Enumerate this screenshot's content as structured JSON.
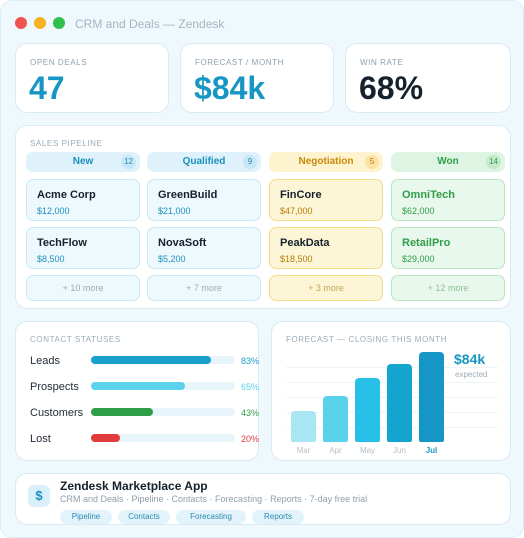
{
  "window": {
    "title": "CRM and Deals — Zendesk"
  },
  "kpis": [
    {
      "label": "OPEN DEALS",
      "value": "47",
      "color": "#1796c4"
    },
    {
      "label": "FORECAST / MONTH",
      "value": "$84k",
      "color": "#1796c4"
    },
    {
      "label": "WIN RATE",
      "value": "68%",
      "color": "#15212c"
    }
  ],
  "pipeline": {
    "label": "SALES PIPELINE",
    "columns": [
      {
        "name": "New",
        "count": "12",
        "deals": [
          {
            "name": "Acme Corp",
            "value": "$12,000"
          },
          {
            "name": "TechFlow",
            "value": "$8,500"
          }
        ],
        "more": "+ 10 more"
      },
      {
        "name": "Qualified",
        "count": "9",
        "deals": [
          {
            "name": "GreenBuild",
            "value": "$21,000"
          },
          {
            "name": "NovaSoft",
            "value": "$5,200"
          }
        ],
        "more": "+ 7 more"
      },
      {
        "name": "Negotiation",
        "count": "5",
        "deals": [
          {
            "name": "FinCore",
            "value": "$47,000"
          },
          {
            "name": "PeakData",
            "value": "$18,500"
          }
        ],
        "more": "+ 3 more"
      },
      {
        "name": "Won",
        "count": "14",
        "deals": [
          {
            "name": "OmniTech",
            "value": "$62,000"
          },
          {
            "name": "RetailPro",
            "value": "$29,000"
          }
        ],
        "more": "+ 12 more"
      }
    ]
  },
  "contacts": {
    "label": "CONTACT STATUSES",
    "items": [
      {
        "label": "Leads",
        "pct": "83%",
        "fraction": 0.83,
        "color": "#1a9fcb"
      },
      {
        "label": "Prospects",
        "pct": "65%",
        "fraction": 0.65,
        "color": "#5ad3ec"
      },
      {
        "label": "Customers",
        "pct": "43%",
        "fraction": 0.43,
        "color": "#2f9e47"
      },
      {
        "label": "Lost",
        "pct": "20%",
        "fraction": 0.2,
        "color": "#e03c3c"
      }
    ]
  },
  "forecast": {
    "label": "FORECAST — CLOSING THIS MONTH",
    "value": "$84k",
    "sub": "expected",
    "months": [
      "Mar",
      "Apr",
      "May",
      "Jun",
      "Jul"
    ],
    "levels": [
      0.35,
      0.51,
      0.71,
      0.87,
      1.0
    ],
    "colors": [
      "#a8e6f4",
      "#5bd2ec",
      "#28c0e6",
      "#14a5cf",
      "#1596c6"
    ],
    "highlight_index": 4
  },
  "marketplace": {
    "icon": "$",
    "title": "Zendesk Marketplace App",
    "subtitle": "CRM and Deals · Pipeline · Contacts · Forecasting · Reports · 7-day free trial",
    "tags": [
      "Pipeline",
      "Contacts",
      "Forecasting",
      "Reports"
    ]
  }
}
